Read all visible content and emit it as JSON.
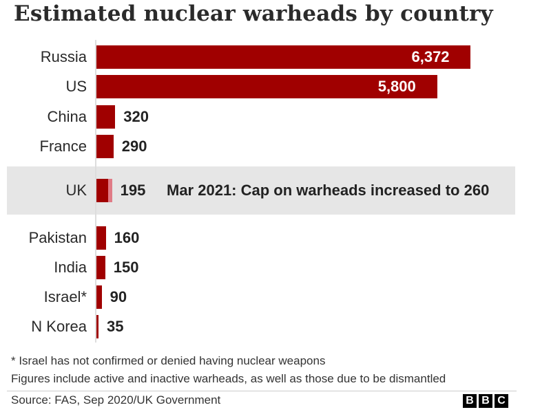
{
  "chart_data": {
    "type": "bar",
    "orientation": "horizontal",
    "title": "Estimated nuclear warheads by country",
    "categories": [
      "Russia",
      "US",
      "China",
      "France",
      "UK",
      "Pakistan",
      "India",
      "Israel*",
      "N Korea"
    ],
    "values": [
      6372,
      5800,
      320,
      290,
      195,
      160,
      150,
      90,
      35
    ],
    "value_labels": [
      "6,372",
      "5,800",
      "320",
      "290",
      "195",
      "160",
      "150",
      "90",
      "35"
    ],
    "highlight": {
      "category": "UK",
      "new_value": 260,
      "annotation": "Mar 2021: Cap on warheads increased to 260"
    },
    "xlim": [
      0,
      6800
    ],
    "colors": {
      "bar": "#a00000",
      "increase": "#e07b86",
      "highlight_band": "#e6e6e6"
    },
    "footnotes": [
      "* Israel has not confirmed or denied having nuclear weapons",
      "Figures include active and inactive warheads, as well as those due to be dismantled"
    ],
    "source": "Source: FAS, Sep 2020/UK Government"
  },
  "branding": {
    "logo_letters": [
      "B",
      "B",
      "C"
    ]
  }
}
